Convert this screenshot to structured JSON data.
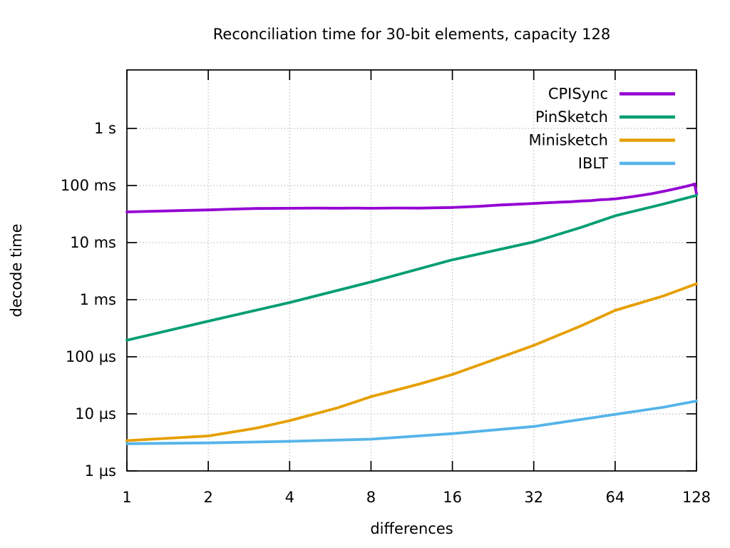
{
  "chart_data": {
    "type": "line",
    "title": "Reconciliation time for 30-bit elements, capacity 128",
    "xlabel": "differences",
    "ylabel": "decode time",
    "x_scale": "log2",
    "y_scale": "log10",
    "xlim": [
      1,
      128
    ],
    "ylim_us": [
      1,
      10600000
    ],
    "grid": true,
    "legend_position": "top-right-inside",
    "x_ticks": [
      {
        "value": 1,
        "label": "1"
      },
      {
        "value": 2,
        "label": "2"
      },
      {
        "value": 4,
        "label": "4"
      },
      {
        "value": 8,
        "label": "8"
      },
      {
        "value": 16,
        "label": "16"
      },
      {
        "value": 32,
        "label": "32"
      },
      {
        "value": 64,
        "label": "64"
      },
      {
        "value": 128,
        "label": "128"
      }
    ],
    "y_ticks": [
      {
        "value_us": 1,
        "label": "1 µs"
      },
      {
        "value_us": 10,
        "label": "10 µs"
      },
      {
        "value_us": 100,
        "label": "100 µs"
      },
      {
        "value_us": 1000,
        "label": "1 ms"
      },
      {
        "value_us": 10000,
        "label": "10 ms"
      },
      {
        "value_us": 100000,
        "label": "100 ms"
      },
      {
        "value_us": 1000000,
        "label": "1 s"
      }
    ],
    "series": [
      {
        "name": "CPISync",
        "color": "#9400d3",
        "points_x_us": [
          [
            1,
            34500
          ],
          [
            1.5,
            36200
          ],
          [
            2,
            37400
          ],
          [
            2.5,
            38700
          ],
          [
            3,
            39600
          ],
          [
            4,
            39900
          ],
          [
            5,
            40300
          ],
          [
            6,
            40000
          ],
          [
            7,
            40300
          ],
          [
            8,
            39900
          ],
          [
            10,
            40400
          ],
          [
            12,
            40100
          ],
          [
            14,
            40700
          ],
          [
            16,
            41200
          ],
          [
            20,
            43200
          ],
          [
            24,
            45600
          ],
          [
            28,
            47000
          ],
          [
            32,
            48600
          ],
          [
            36,
            50000
          ],
          [
            40,
            51200
          ],
          [
            44,
            52100
          ],
          [
            48,
            53600
          ],
          [
            52,
            54400
          ],
          [
            56,
            56300
          ],
          [
            60,
            57100
          ],
          [
            64,
            58300
          ],
          [
            72,
            62500
          ],
          [
            80,
            67500
          ],
          [
            88,
            72500
          ],
          [
            96,
            78500
          ],
          [
            104,
            85000
          ],
          [
            112,
            92000
          ],
          [
            118,
            97500
          ],
          [
            122,
            101500
          ],
          [
            126,
            106500
          ],
          [
            128,
            72000
          ]
        ]
      },
      {
        "name": "PinSketch",
        "color": "#009e73",
        "points_x_us": [
          [
            1,
            195
          ],
          [
            2,
            420
          ],
          [
            4,
            890
          ],
          [
            8,
            2050
          ],
          [
            16,
            5000
          ],
          [
            32,
            10300
          ],
          [
            48,
            18500
          ],
          [
            64,
            29500
          ],
          [
            96,
            47000
          ],
          [
            128,
            67000
          ]
        ]
      },
      {
        "name": "Minisketch",
        "color": "#e69f00",
        "points_x_us": [
          [
            1,
            3.4
          ],
          [
            2,
            4.1
          ],
          [
            3,
            5.6
          ],
          [
            4,
            7.6
          ],
          [
            6,
            12.7
          ],
          [
            8,
            20
          ],
          [
            12,
            33
          ],
          [
            16,
            49
          ],
          [
            24,
            97
          ],
          [
            32,
            158
          ],
          [
            48,
            350
          ],
          [
            64,
            650
          ],
          [
            96,
            1150
          ],
          [
            128,
            1900
          ]
        ]
      },
      {
        "name": "IBLT",
        "color": "#56b4e9",
        "points_x_us": [
          [
            1,
            3.0
          ],
          [
            2,
            3.1
          ],
          [
            4,
            3.3
          ],
          [
            8,
            3.6
          ],
          [
            16,
            4.5
          ],
          [
            32,
            6.0
          ],
          [
            64,
            9.8
          ],
          [
            96,
            13
          ],
          [
            128,
            16.8
          ]
        ]
      }
    ]
  }
}
